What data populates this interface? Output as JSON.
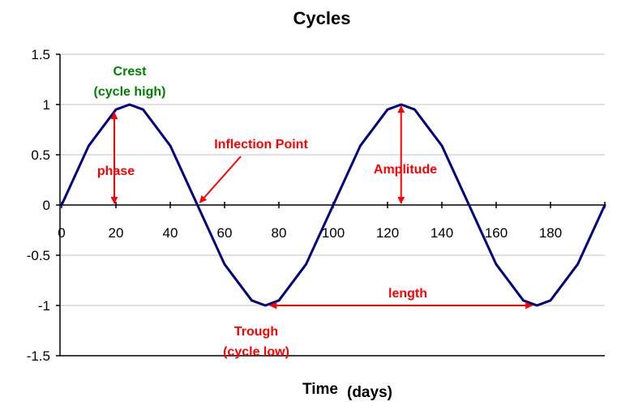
{
  "chart_data": {
    "type": "line",
    "title": "Cycles",
    "xlabel": "Time (days)",
    "xlabel_parts": [
      "Time",
      "(days)"
    ],
    "ylabel": "",
    "xlim": [
      0,
      200
    ],
    "ylim": [
      -1.5,
      1.5
    ],
    "x_ticks": [
      0,
      20,
      40,
      60,
      80,
      100,
      120,
      140,
      160,
      180
    ],
    "y_ticks": [
      -1.5,
      -1,
      -0.5,
      0,
      0.5,
      1,
      1.5
    ],
    "x_tick_labels": [
      "0",
      "20",
      "40",
      "60",
      "80",
      "100",
      "120",
      "140",
      "160",
      "180"
    ],
    "y_tick_labels": [
      "-1.5",
      "-1",
      "-0.5",
      "0",
      "0.5",
      "1",
      "1.5"
    ],
    "grid": "horizontal",
    "legend": "none",
    "series": [
      {
        "x": [
          0,
          10,
          20,
          25,
          30,
          40,
          50,
          60,
          70,
          75,
          80,
          90,
          100,
          110,
          120,
          125,
          130,
          140,
          150,
          160,
          170,
          175,
          180,
          190,
          200
        ],
        "y": [
          0,
          0.59,
          0.95,
          1,
          0.95,
          0.59,
          0,
          -0.59,
          -0.95,
          -1,
          -0.95,
          -0.59,
          0,
          0.59,
          0.95,
          1,
          0.95,
          0.59,
          0,
          -0.59,
          -0.95,
          -1,
          -0.95,
          -0.59,
          0
        ],
        "color": "#000080"
      }
    ],
    "annotations": {
      "crest_line1": "Crest",
      "crest_line2": "(cycle high)",
      "phase": "phase",
      "inflection": "Inflection Point",
      "amplitude": "Amplitude",
      "length": "length",
      "trough_line1": "Trough",
      "trough_line2": "(cycle low)"
    },
    "annotation_points": {
      "phase_arrow": {
        "x": 20,
        "y_from": 0,
        "y_to": 1
      },
      "amplitude_arrow": {
        "x": 125,
        "y_from": 0,
        "y_to": 1
      },
      "length_arrow": {
        "x_from": 75,
        "x_to": 175,
        "y": -1
      },
      "inflection_target": {
        "x": 50,
        "y": 0
      }
    },
    "colors": {
      "line": "#000080",
      "annotation": "#ff0000",
      "crest": "#008000",
      "grid": "#c0c0c0"
    }
  }
}
